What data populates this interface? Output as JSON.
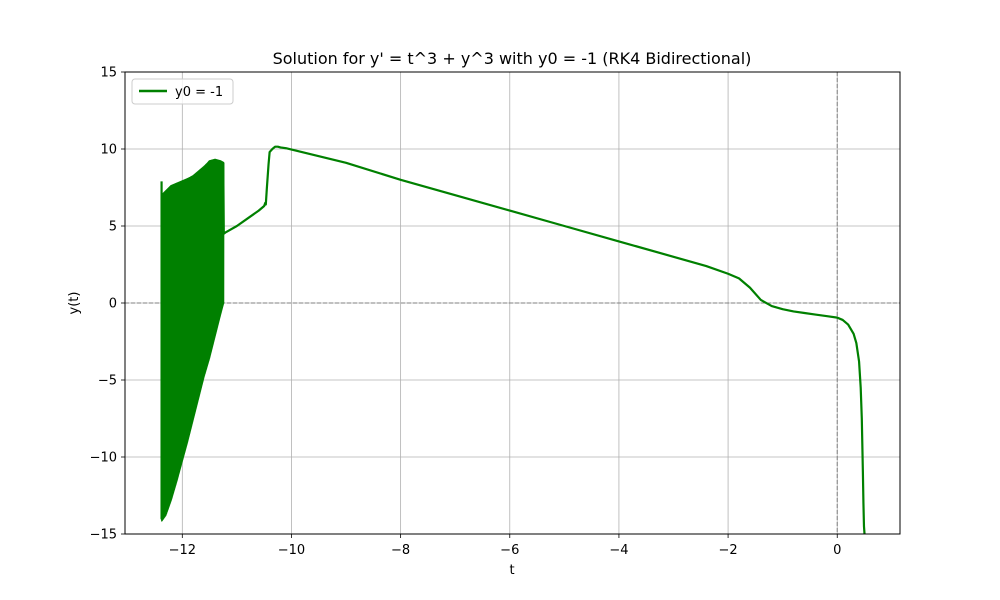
{
  "chart_data": {
    "type": "line",
    "title": "Solution for y' = t^3 + y^3 with y0 = -1 (RK4 Bidirectional)",
    "xlabel": "t",
    "ylabel": "y(t)",
    "xlim": [
      -13.05,
      1.15
    ],
    "ylim": [
      -15,
      15
    ],
    "x_ticks": [
      -12,
      -10,
      -8,
      -6,
      -4,
      -2,
      0
    ],
    "x_tick_labels": [
      "−12",
      "−10",
      "−8",
      "−6",
      "−4",
      "−2",
      "0"
    ],
    "y_ticks": [
      -15,
      -10,
      -5,
      0,
      5,
      10,
      15
    ],
    "y_tick_labels": [
      "−15",
      "−10",
      "−5",
      "0",
      "5",
      "10",
      "15"
    ],
    "grid": true,
    "reference_lines": {
      "horizontal_y": 0,
      "vertical_x": 0,
      "style": "dashed",
      "color": "#808080"
    },
    "legend_position": "top-left",
    "series": [
      {
        "name": "y0 = -1",
        "color": "#008000",
        "x": [
          -12.38,
          -12.38,
          -12.37,
          -12.2,
          -12.0,
          -11.8,
          -11.6,
          -11.5,
          -11.4,
          -11.3,
          -11.25,
          -11.24,
          -11.2,
          -11.0,
          -10.8,
          -10.6,
          -10.5,
          -10.48,
          -10.47,
          -10.45,
          -10.42,
          -10.4,
          -10.35,
          -10.3,
          -10.25,
          -10.2,
          -10.1,
          -9.0,
          -8.0,
          -7.0,
          -6.0,
          -5.0,
          -4.0,
          -3.0,
          -2.4,
          -2.0,
          -1.8,
          -1.6,
          -1.4,
          -1.2,
          -1.0,
          -0.8,
          -0.6,
          -0.4,
          -0.2,
          0.0,
          0.1,
          0.2,
          0.3,
          0.35,
          0.4,
          0.43,
          0.45,
          0.47,
          0.48,
          0.49,
          0.5
        ],
        "y": [
          7.9,
          -14.0,
          7.0,
          7.6,
          7.9,
          8.2,
          8.7,
          9.2,
          9.3,
          9.2,
          9.1,
          4.5,
          4.6,
          5.0,
          5.5,
          6.0,
          6.3,
          6.5,
          6.4,
          7.5,
          9.0,
          9.8,
          10.0,
          10.15,
          10.15,
          10.1,
          10.05,
          9.1,
          8.0,
          7.0,
          6.0,
          5.0,
          4.0,
          3.0,
          2.4,
          1.9,
          1.6,
          1.0,
          0.2,
          -0.2,
          -0.4,
          -0.55,
          -0.65,
          -0.75,
          -0.85,
          -0.95,
          -1.1,
          -1.4,
          -2.0,
          -2.6,
          -3.8,
          -5.5,
          -7.5,
          -11.0,
          -13.0,
          -14.5,
          -15.0
        ]
      }
    ],
    "oscillation_band": {
      "series": "y0 = -1",
      "t_start": -12.38,
      "t_end": -11.24,
      "lower_envelope": {
        "x": [
          -12.38,
          -12.3,
          -12.2,
          -12.1,
          -12.0,
          -11.9,
          -11.8,
          -11.7,
          -11.6,
          -11.5,
          -11.4,
          -11.3,
          -11.24
        ],
        "y": [
          -14.2,
          -13.8,
          -12.8,
          -11.6,
          -10.3,
          -9.0,
          -7.6,
          -6.2,
          -4.8,
          -3.6,
          -2.2,
          -0.8,
          0.0
        ]
      },
      "upper_envelope": {
        "x": [
          -12.38,
          -12.3,
          -12.2,
          -12.1,
          -12.0,
          -11.9,
          -11.8,
          -11.7,
          -11.6,
          -11.5,
          -11.45,
          -11.4,
          -11.3,
          -11.24
        ],
        "y": [
          7.0,
          7.3,
          7.6,
          7.8,
          7.9,
          8.1,
          8.3,
          8.6,
          8.9,
          9.25,
          9.3,
          9.25,
          9.2,
          9.1
        ]
      }
    }
  }
}
